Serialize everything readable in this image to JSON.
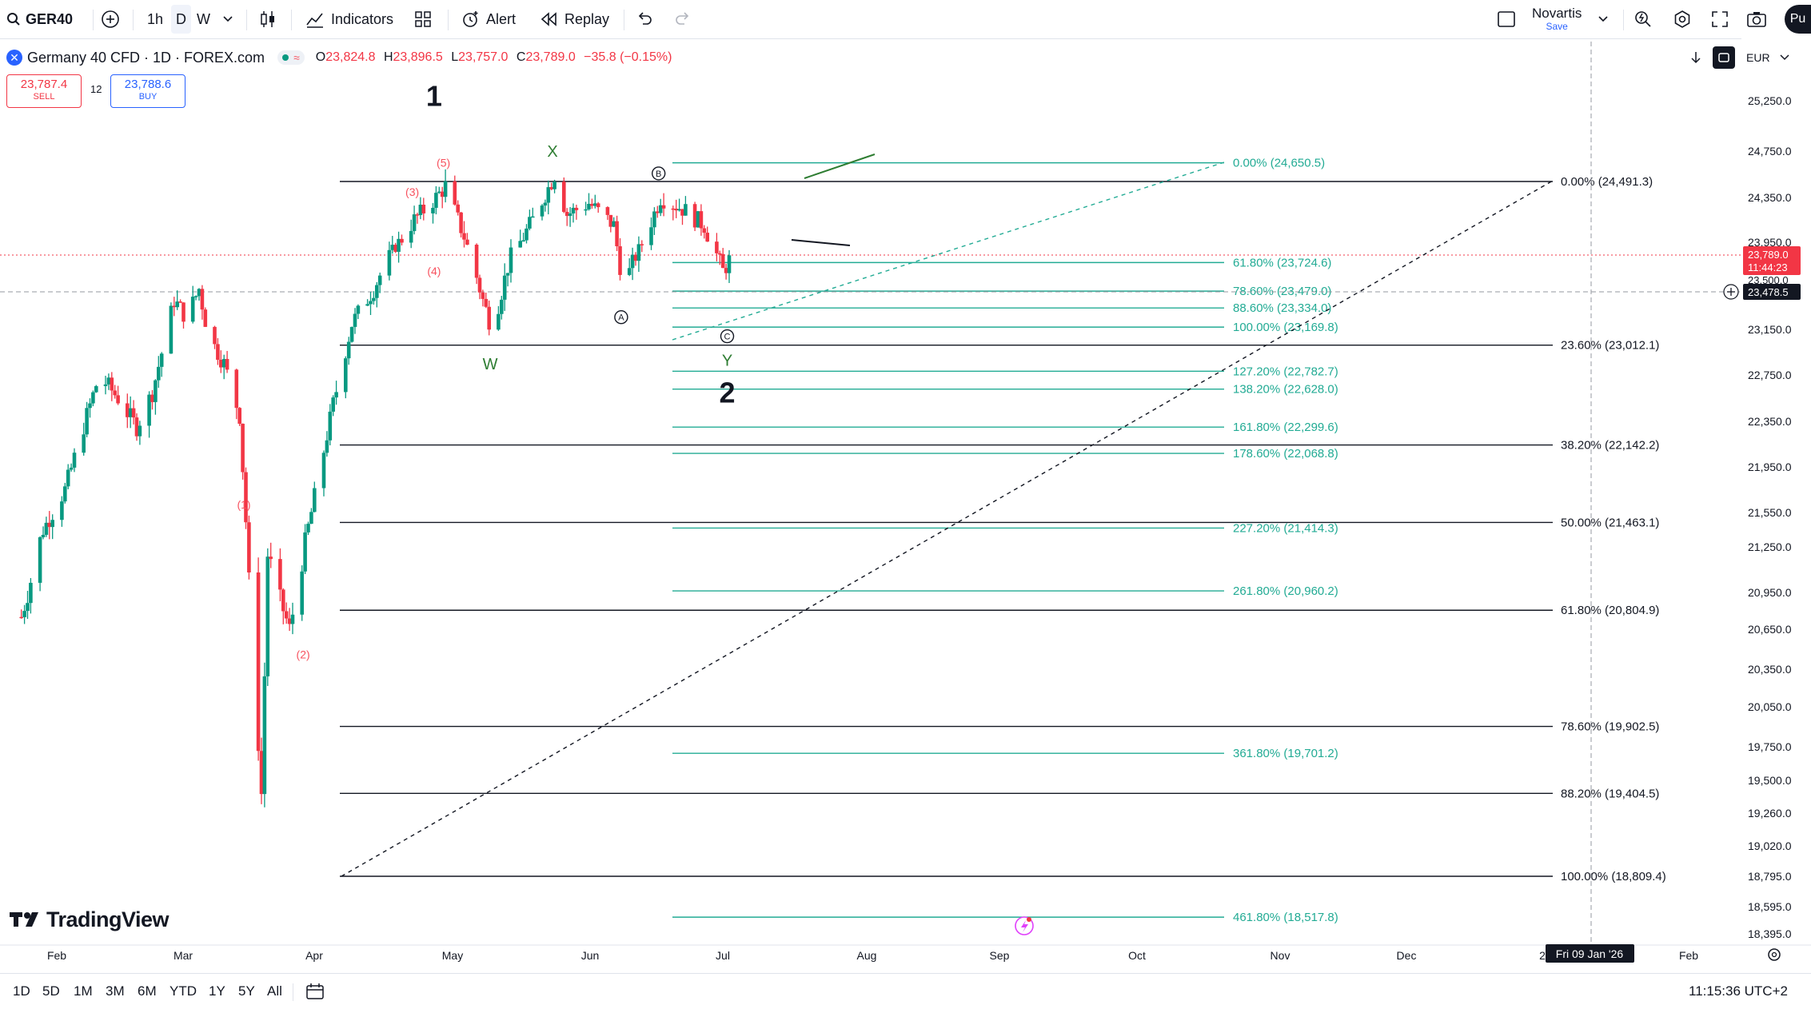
{
  "toolbar": {
    "symbol": "GER40",
    "intervals": [
      "1h",
      "D",
      "W"
    ],
    "indicators_label": "Indicators",
    "alert_label": "Alert",
    "replay_label": "Replay",
    "layout_name": "Novartis",
    "layout_save": "Save",
    "publish_label": "Pu"
  },
  "legend": {
    "title": "Germany 40 CFD · 1D · FOREX.com",
    "o_label": "O",
    "o_value": "23,824.8",
    "h_label": "H",
    "h_value": "23,896.5",
    "l_label": "L",
    "l_value": "23,757.0",
    "c_label": "C",
    "c_value": "23,789.0",
    "change": "−35.8 (−0.15%)"
  },
  "trade": {
    "sell_price": "23,787.4",
    "sell_label": "SELL",
    "spread": "12",
    "buy_price": "23,788.6",
    "buy_label": "BUY"
  },
  "currency": "EUR",
  "logo_text": "TradingView",
  "bottom": {
    "ranges": [
      "1D",
      "5D",
      "1M",
      "3M",
      "6M",
      "YTD",
      "1Y",
      "5Y",
      "All"
    ],
    "clock": "11:15:36 UTC+2"
  },
  "colors": {
    "up": "#089981",
    "down": "#f23645",
    "fib_main": "#131722",
    "fib_ext": "#22ab94",
    "wave_red": "#f7525f",
    "wave_green": "#2e7d32",
    "accent": "#2962ff"
  },
  "chart_data": {
    "type": "candlestick",
    "title": "Germany 40 CFD · 1D · FOREX.com",
    "y_axis_ticks": [
      "25,250.0",
      "24,750.0",
      "24,350.0",
      "23,950.0",
      "23,150.0",
      "22,750.0",
      "22,350.0",
      "21,950.0",
      "21,550.0",
      "21,250.0",
      "20,950.0",
      "20,650.0",
      "20,350.0",
      "20,050.0",
      "19,750.0",
      "19,500.0",
      "19,260.0",
      "19,020.0",
      "18,795.0",
      "18,595.0",
      "18,395.0"
    ],
    "x_axis_ticks": [
      "Feb",
      "Mar",
      "Apr",
      "May",
      "Jun",
      "Jul",
      "Aug",
      "Sep",
      "Oct",
      "Nov",
      "Dec",
      "2",
      "Feb"
    ],
    "crosshair_date": "Fri 09 Jan '26",
    "price_labels": {
      "last": "23,789.0",
      "countdown": "11:44:23",
      "crosshair": "23,478.5",
      "hidden": "23,500.0"
    },
    "series": [
      {
        "name": "GER40 1D",
        "anchors": [
          [
            "Jan 20",
            20750
          ],
          [
            "Jan 27",
            21400
          ],
          [
            "Feb 3",
            21750
          ],
          [
            "Feb 10",
            22400
          ],
          [
            "Feb 14",
            22750
          ],
          [
            "Feb 20",
            22550
          ],
          [
            "Feb 26",
            22300
          ],
          [
            "Mar 3",
            22600
          ],
          [
            "Mar 10",
            23400
          ],
          [
            "Mar 14",
            23250
          ],
          [
            "Mar 18",
            23500
          ],
          [
            "Mar 21",
            23100
          ],
          [
            "Mar 26",
            22850
          ],
          [
            "Mar 31",
            22400
          ],
          [
            "Apr 4",
            20550
          ],
          [
            "Apr 7",
            19400
          ],
          [
            "Apr 9",
            21200
          ],
          [
            "Apr 16",
            20650
          ],
          [
            "Apr 23",
            21550
          ],
          [
            "Apr 30",
            22500
          ],
          [
            "May 6",
            23200
          ],
          [
            "May 13",
            23500
          ],
          [
            "May 20",
            23900
          ],
          [
            "May 26",
            24150
          ],
          [
            "Jun 2",
            24350
          ],
          [
            "Jun 5",
            24450
          ],
          [
            "Jun 11",
            24000
          ],
          [
            "Jun 17",
            23400
          ],
          [
            "Jun 20",
            23150
          ],
          [
            "Jun 26",
            23800
          ],
          [
            "Jul 3",
            24150
          ],
          [
            "Jul 10",
            24550
          ],
          [
            "Jul 14",
            24200
          ],
          [
            "Jul 21",
            24300
          ],
          [
            "Jul 29",
            24100
          ],
          [
            "Aug 1",
            23500
          ],
          [
            "Aug 8",
            24000
          ],
          [
            "Aug 13",
            24350
          ],
          [
            "Aug 20",
            24250
          ],
          [
            "Aug 27",
            24100
          ],
          [
            "Sep 2",
            23650
          ],
          [
            "Sep 5",
            23789
          ]
        ]
      }
    ],
    "fib_retracement": [
      {
        "label": "0.00%",
        "value": "24,491.3"
      },
      {
        "label": "23.60%",
        "value": "23,012.1"
      },
      {
        "label": "38.20%",
        "value": "22,142.2"
      },
      {
        "label": "50.00%",
        "value": "21,463.1"
      },
      {
        "label": "61.80%",
        "value": "20,804.9"
      },
      {
        "label": "78.60%",
        "value": "19,902.5"
      },
      {
        "label": "88.20%",
        "value": "19,404.5"
      },
      {
        "label": "100.00%",
        "value": "18,809.4"
      }
    ],
    "fib_extension": [
      {
        "label": "0.00%",
        "value": "24,650.5"
      },
      {
        "label": "61.80%",
        "value": "23,724.6"
      },
      {
        "label": "78.60%",
        "value": "23,479.0"
      },
      {
        "label": "88.60%",
        "value": "23,334.0"
      },
      {
        "label": "100.00%",
        "value": "23,169.8"
      },
      {
        "label": "127.20%",
        "value": "22,782.7"
      },
      {
        "label": "138.20%",
        "value": "22,628.0"
      },
      {
        "label": "161.80%",
        "value": "22,299.6"
      },
      {
        "label": "178.60%",
        "value": "22,068.8"
      },
      {
        "label": "227.20%",
        "value": "21,414.3"
      },
      {
        "label": "261.80%",
        "value": "20,960.2"
      },
      {
        "label": "361.80%",
        "value": "19,701.2"
      },
      {
        "label": "461.80%",
        "value": "18,517.8"
      }
    ],
    "wave_labels": [
      {
        "text": "1",
        "date": "Jun 2",
        "price": 25300
      },
      {
        "text": "(5)",
        "date": "Jun 5",
        "price": 24650
      },
      {
        "text": "(3)",
        "date": "May 26",
        "price": 24400
      },
      {
        "text": "(4)",
        "date": "Jun 2",
        "price": 23650
      },
      {
        "text": "(1)",
        "date": "Apr 2",
        "price": 21620
      },
      {
        "text": "(2)",
        "date": "Apr 21",
        "price": 20460
      },
      {
        "text": "X",
        "date": "Jul 10",
        "price": 24750
      },
      {
        "text": "W",
        "date": "Jun 20",
        "price": 22850
      },
      {
        "text": "B",
        "date": "Aug 13",
        "price": 24560
      },
      {
        "text": "A",
        "date": "Aug 1",
        "price": 23255
      },
      {
        "text": "C",
        "date": "Sep 4",
        "price": 23090
      },
      {
        "text": "Y",
        "date": "Sep 4",
        "price": 22880
      },
      {
        "text": "2",
        "date": "Sep 4",
        "price": 22600
      }
    ]
  }
}
